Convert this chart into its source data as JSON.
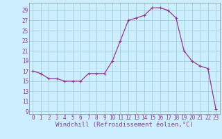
{
  "x": [
    0,
    1,
    2,
    3,
    4,
    5,
    6,
    7,
    8,
    9,
    10,
    11,
    12,
    13,
    14,
    15,
    16,
    17,
    18,
    19,
    20,
    21,
    22,
    23
  ],
  "y": [
    17,
    16.5,
    15.5,
    15.5,
    15,
    15,
    15,
    16.5,
    16.5,
    16.5,
    19,
    23,
    27,
    27.5,
    28,
    29.5,
    29.5,
    29,
    27.5,
    21,
    19,
    18,
    17.5,
    9.5
  ],
  "line_color": "#993399",
  "marker": "+",
  "bg_color": "#cceeff",
  "grid_color": "#99cccc",
  "xlabel": "Windchill (Refroidissement éolien,°C)",
  "xlabel_color": "#993399",
  "yticks": [
    9,
    11,
    13,
    15,
    17,
    19,
    21,
    23,
    25,
    27,
    29
  ],
  "xticks": [
    0,
    1,
    2,
    3,
    4,
    5,
    6,
    7,
    8,
    9,
    10,
    11,
    12,
    13,
    14,
    15,
    16,
    17,
    18,
    19,
    20,
    21,
    22,
    23
  ],
  "ylim": [
    8.5,
    30.5
  ],
  "xlim": [
    -0.5,
    23.5
  ],
  "tick_label_color": "#993399",
  "tick_label_size": 5.5,
  "xlabel_size": 6.5,
  "spine_color": "#888888",
  "linewidth": 0.9,
  "markersize": 3,
  "markeredgewidth": 0.8
}
